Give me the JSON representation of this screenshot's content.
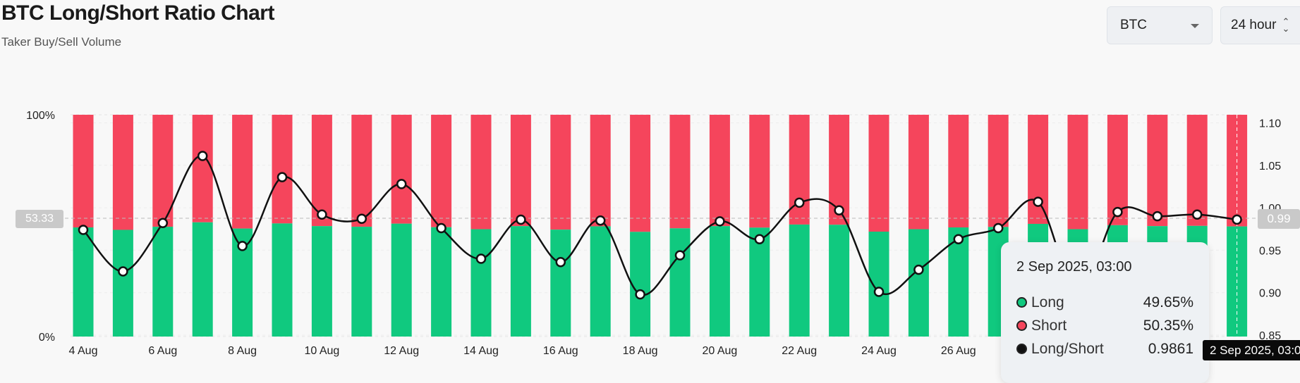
{
  "header": {
    "title": "BTC Long/Short Ratio Chart",
    "subtitle": "Taker Buy/Sell Volume"
  },
  "controls": {
    "coin": "BTC",
    "period": "24 hour"
  },
  "crosshair": {
    "left_label": "53.33",
    "right_label": "0.99",
    "x_label": "2 Sep 2025, 03:00"
  },
  "tooltip": {
    "date": "2 Sep 2025, 03:00",
    "rows": [
      {
        "label": "Long",
        "value": "49.65%",
        "color": "#10c97f"
      },
      {
        "label": "Short",
        "value": "50.35%",
        "color": "#f5455c"
      },
      {
        "label": "Long/Short",
        "value": "0.9861",
        "color": "#111111"
      }
    ]
  },
  "colors": {
    "long": "#10c97f",
    "short": "#f5455c",
    "line": "#111111"
  },
  "chart_data": {
    "type": "bar",
    "stacked": true,
    "title": "BTC Long/Short Ratio Chart",
    "subtitle": "Taker Buy/Sell Volume",
    "left_axis": {
      "range": [
        0,
        100
      ],
      "tick_labels": [
        "0%",
        "100%"
      ]
    },
    "right_axis": {
      "range": [
        0.85,
        1.1
      ],
      "ticks": [
        0.85,
        0.9,
        0.95,
        1.0,
        1.05,
        1.1
      ],
      "tick_labels": [
        "0.85",
        "0.90",
        "0.95",
        "1.00",
        "1.05",
        "1.10"
      ]
    },
    "x_tick_labels": [
      "4 Aug",
      "6 Aug",
      "8 Aug",
      "10 Aug",
      "12 Aug",
      "14 Aug",
      "16 Aug",
      "18 Aug",
      "20 Aug",
      "22 Aug",
      "24 Aug",
      "26 Aug"
    ],
    "categories": [
      "4 Aug",
      "5 Aug",
      "6 Aug",
      "7 Aug",
      "8 Aug",
      "9 Aug",
      "10 Aug",
      "11 Aug",
      "12 Aug",
      "13 Aug",
      "14 Aug",
      "15 Aug",
      "16 Aug",
      "17 Aug",
      "18 Aug",
      "19 Aug",
      "20 Aug",
      "21 Aug",
      "22 Aug",
      "23 Aug",
      "24 Aug",
      "25 Aug",
      "26 Aug",
      "27 Aug",
      "28 Aug",
      "29 Aug",
      "30 Aug",
      "31 Aug",
      "1 Sep",
      "2 Sep"
    ],
    "series": [
      {
        "name": "Long",
        "axis": "left",
        "values": [
          49.2,
          48.1,
          49.5,
          51.5,
          48.7,
          51.0,
          49.8,
          49.5,
          50.9,
          49.3,
          48.4,
          49.8,
          48.2,
          49.7,
          47.2,
          48.8,
          49.8,
          49.1,
          50.5,
          50.4,
          47.3,
          48.4,
          49.2,
          49.4,
          50.8,
          48.4,
          50.2,
          49.8,
          49.9,
          49.65
        ]
      },
      {
        "name": "Short",
        "axis": "left",
        "values": [
          50.8,
          51.9,
          50.5,
          48.5,
          51.3,
          49.0,
          50.2,
          50.5,
          49.1,
          50.7,
          51.6,
          50.2,
          51.8,
          50.3,
          52.8,
          51.2,
          50.2,
          50.9,
          49.5,
          49.6,
          52.7,
          51.6,
          50.8,
          50.6,
          49.2,
          51.6,
          49.8,
          50.2,
          50.1,
          50.35
        ]
      },
      {
        "name": "Long/Short",
        "axis": "right",
        "type": "line",
        "values": [
          0.974,
          0.925,
          0.982,
          1.061,
          0.955,
          1.036,
          0.992,
          0.987,
          1.028,
          0.976,
          0.94,
          0.986,
          0.936,
          0.985,
          0.898,
          0.944,
          0.984,
          0.963,
          1.006,
          0.997,
          0.901,
          0.927,
          0.963,
          0.976,
          1.007,
          0.9,
          0.995,
          0.99,
          0.992,
          0.9861
        ]
      }
    ]
  }
}
